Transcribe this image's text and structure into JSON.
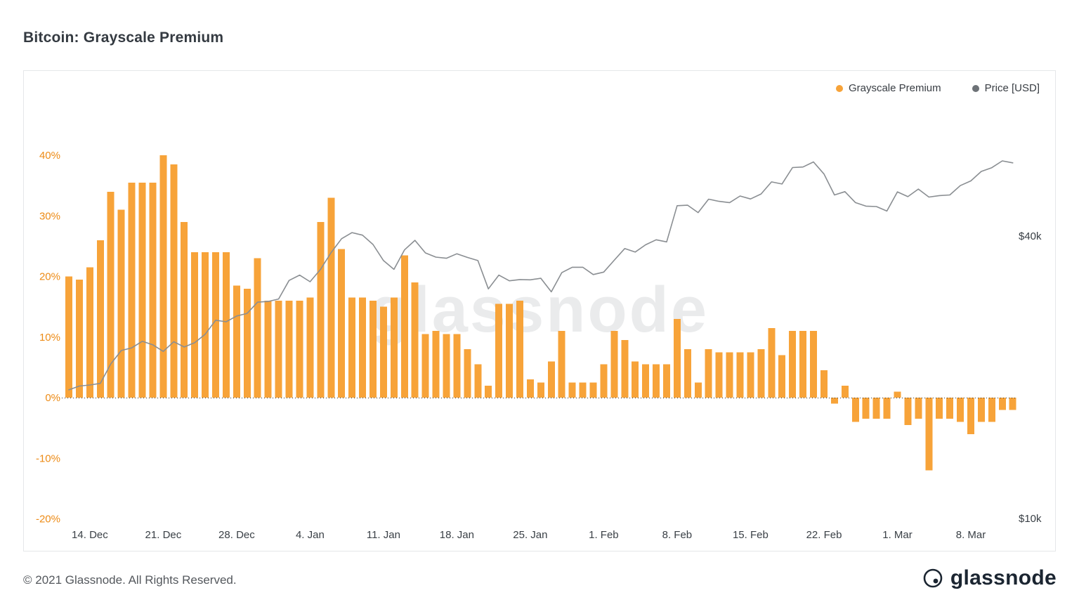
{
  "page": {
    "title": "Bitcoin: Grayscale Premium",
    "watermark": "glassnode"
  },
  "legend": {
    "items": [
      {
        "label": "Grayscale Premium",
        "color": "#f7a339"
      },
      {
        "label": "Price [USD]",
        "color": "#6d7277"
      }
    ]
  },
  "footer": {
    "copyright": "© 2021 Glassnode. All Rights Reserved.",
    "brand": "glassnode"
  },
  "chart_data": {
    "type": "bar",
    "title": "Bitcoin: Grayscale Premium",
    "legend_position": "top-right",
    "grid": false,
    "zero_line": "dotted",
    "x_tick_labels": [
      {
        "index": 2,
        "label": "14. Dec"
      },
      {
        "index": 9,
        "label": "21. Dec"
      },
      {
        "index": 16,
        "label": "28. Dec"
      },
      {
        "index": 23,
        "label": "4. Jan"
      },
      {
        "index": 30,
        "label": "11. Jan"
      },
      {
        "index": 37,
        "label": "18. Jan"
      },
      {
        "index": 44,
        "label": "25. Jan"
      },
      {
        "index": 51,
        "label": "1. Feb"
      },
      {
        "index": 58,
        "label": "8. Feb"
      },
      {
        "index": 65,
        "label": "15. Feb"
      },
      {
        "index": 72,
        "label": "22. Feb"
      },
      {
        "index": 79,
        "label": "1. Mar"
      },
      {
        "index": 86,
        "label": "8. Mar"
      }
    ],
    "y_left": {
      "unit": "%",
      "ticks": [
        40,
        30,
        20,
        10,
        0,
        -10,
        -20
      ],
      "min": -22,
      "max": 47,
      "label_color": "#ed8b16"
    },
    "y_right": {
      "scale": "log",
      "ticks": [
        {
          "label": "$40k",
          "value": 40000
        },
        {
          "label": "$10k",
          "value": 10000
        }
      ],
      "label_color": "#383e44"
    },
    "series": [
      {
        "name": "Grayscale Premium",
        "type": "column",
        "unit": "%",
        "color": "#f7a339",
        "values": [
          20,
          19.5,
          21.5,
          26,
          34,
          31,
          35.5,
          35.5,
          35.5,
          40,
          38.5,
          29,
          24,
          24,
          24,
          24,
          18.5,
          18,
          23,
          16,
          16,
          16,
          16,
          16.5,
          29,
          33,
          24.5,
          16.5,
          16.5,
          16,
          15,
          16.5,
          23.5,
          19,
          10.5,
          11,
          10.5,
          10.5,
          8,
          5.5,
          2,
          15.5,
          15.5,
          16,
          3,
          2.5,
          6,
          11,
          2.5,
          2.5,
          2.5,
          5.5,
          11,
          9.5,
          6,
          5.5,
          5.5,
          5.5,
          13,
          8,
          2.5,
          8,
          7.5,
          7.5,
          7.5,
          7.5,
          8,
          11.5,
          7,
          11,
          11,
          11,
          4.5,
          -1,
          2,
          -4,
          -3.5,
          -3.5,
          -3.5,
          1,
          -4.5,
          -3.5,
          -12,
          -3.5,
          -3.5,
          -4,
          -6,
          -4,
          -4,
          -2,
          -2
        ]
      },
      {
        "name": "Price [USD]",
        "type": "line",
        "unit": "USD",
        "color": "#8a8e92",
        "values": [
          18800,
          19150,
          19250,
          19400,
          21350,
          22800,
          23100,
          23850,
          23450,
          22700,
          23800,
          23200,
          23700,
          24700,
          26450,
          26250,
          27000,
          27350,
          28900,
          29000,
          29350,
          32150,
          33000,
          31950,
          33950,
          36850,
          39450,
          40650,
          40150,
          38350,
          35450,
          33950,
          37350,
          39150,
          36800,
          36050,
          35850,
          36650,
          36000,
          35450,
          30850,
          33000,
          32100,
          32300,
          32250,
          32500,
          30400,
          33400,
          34300,
          34300,
          33100,
          33500,
          35500,
          37600,
          36950,
          38300,
          39250,
          38850,
          46400,
          46500,
          44850,
          47900,
          47400,
          47100,
          48650,
          47950,
          49150,
          52150,
          51600,
          55950,
          56100,
          57500,
          54200,
          48900,
          49700,
          47100,
          46300,
          46200,
          45200,
          49650,
          48500,
          50350,
          48400,
          48750,
          48900,
          51200,
          52400,
          54900,
          55900,
          57800,
          57250
        ]
      }
    ]
  }
}
